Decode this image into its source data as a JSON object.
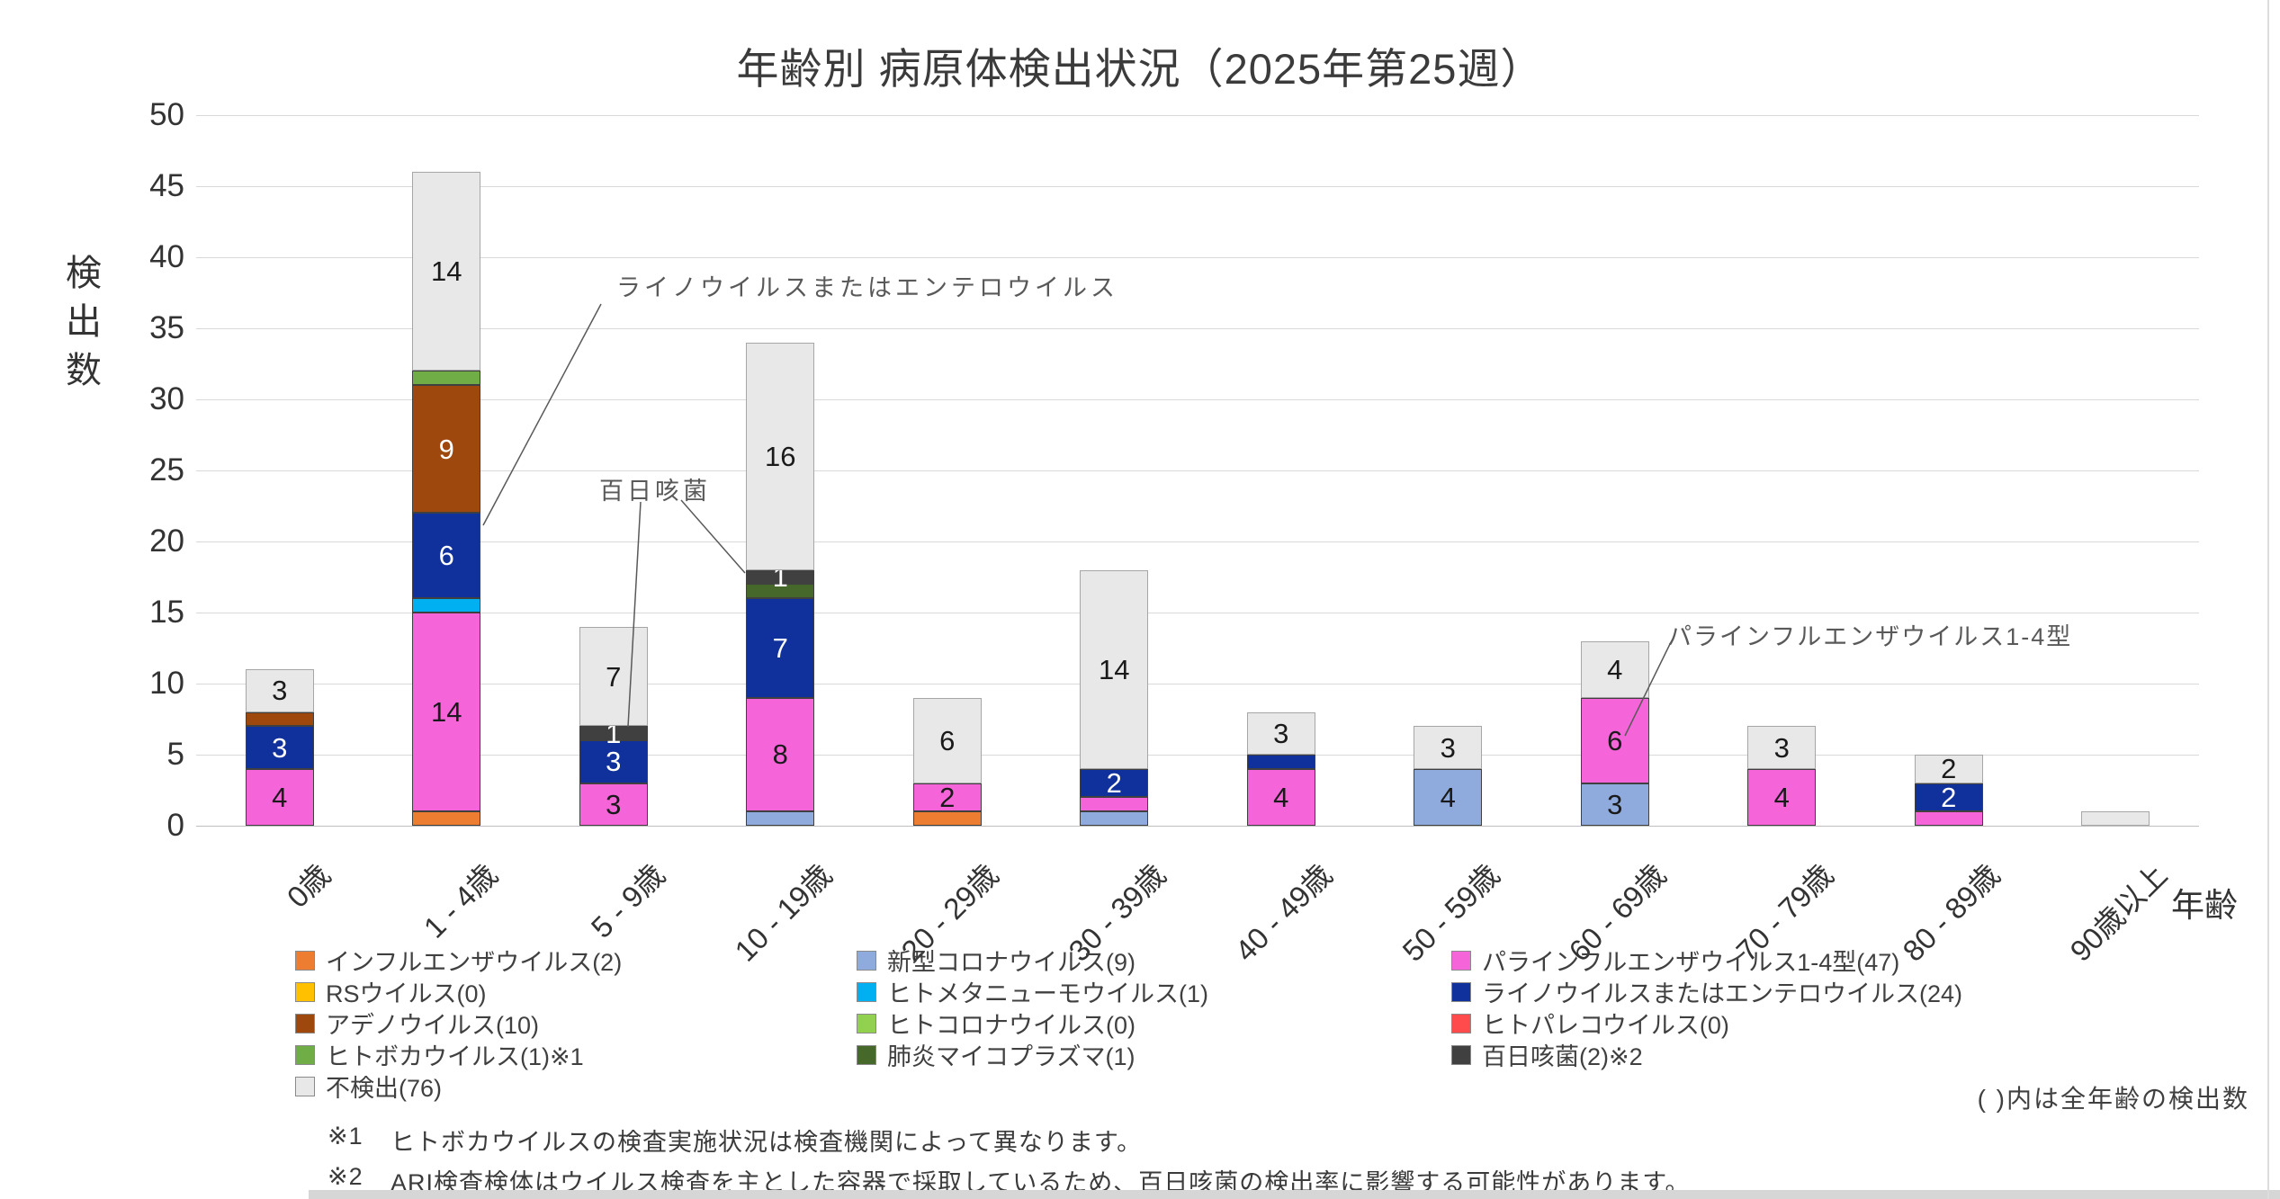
{
  "title": "年齢別 病原体検出状況（2025年第25週）",
  "y_axis": {
    "title": "検出数",
    "ticks": [
      0,
      5,
      10,
      15,
      20,
      25,
      30,
      35,
      40,
      45,
      50
    ]
  },
  "x_axis": {
    "title": "年齢"
  },
  "chart_data": {
    "type": "bar",
    "stacked": true,
    "title": "年齢別 病原体検出状況（2025年第25週）",
    "xlabel": "年齢",
    "ylabel": "検出数",
    "ylim": [
      0,
      50
    ],
    "grid": true,
    "legend_position": "bottom",
    "label_min": 2,
    "categories": [
      "0歳",
      "1 - 4歳",
      "5 - 9歳",
      "10 - 19歳",
      "20 - 29歳",
      "30 - 39歳",
      "40 - 49歳",
      "50 - 59歳",
      "60 - 69歳",
      "70 - 79歳",
      "80 - 89歳",
      "90歳以上"
    ],
    "series": [
      {
        "name": "インフルエンザウイルス",
        "legend_label": "インフルエンザウイルス(2)",
        "color": "#ED7D31",
        "label_color": "#1a1a1a",
        "values": [
          0,
          1,
          0,
          0,
          1,
          0,
          0,
          0,
          0,
          0,
          0,
          0
        ]
      },
      {
        "name": "新型コロナウイルス",
        "legend_label": "新型コロナウイルス(9)",
        "color": "#8FAADC",
        "label_color": "#1a1a1a",
        "values": [
          0,
          0,
          0,
          1,
          0,
          1,
          0,
          4,
          3,
          0,
          0,
          0
        ]
      },
      {
        "name": "パラインフルエンザウイルス1-4型",
        "legend_label": "パラインフルエンザウイルス1-4型(47)",
        "color": "#F564D9",
        "label_color": "#1a1a1a",
        "values": [
          4,
          14,
          3,
          8,
          2,
          1,
          4,
          0,
          6,
          4,
          1,
          0
        ]
      },
      {
        "name": "RSウイルス",
        "legend_label": "RSウイルス(0)",
        "color": "#FFC000",
        "label_color": "#1a1a1a",
        "values": [
          0,
          0,
          0,
          0,
          0,
          0,
          0,
          0,
          0,
          0,
          0,
          0
        ]
      },
      {
        "name": "ヒトメタニューモウイルス",
        "legend_label": "ヒトメタニューモウイルス(1)",
        "color": "#00B0F0",
        "label_color": "#1a1a1a",
        "values": [
          0,
          1,
          0,
          0,
          0,
          0,
          0,
          0,
          0,
          0,
          0,
          0
        ]
      },
      {
        "name": "ライノウイルスまたはエンテロウイルス",
        "legend_label": "ライノウイルスまたはエンテロウイルス(24)",
        "color": "#10309C",
        "label_color": "#ffffff",
        "values": [
          3,
          6,
          3,
          7,
          0,
          2,
          1,
          0,
          0,
          0,
          2,
          0
        ]
      },
      {
        "name": "アデノウイルス",
        "legend_label": "アデノウイルス(10)",
        "color": "#9E480E",
        "label_color": "#ffffff",
        "values": [
          1,
          9,
          0,
          0,
          0,
          0,
          0,
          0,
          0,
          0,
          0,
          0
        ]
      },
      {
        "name": "ヒトコロナウイルス",
        "legend_label": "ヒトコロナウイルス(0)",
        "color": "#92D050",
        "label_color": "#1a1a1a",
        "values": [
          0,
          0,
          0,
          0,
          0,
          0,
          0,
          0,
          0,
          0,
          0,
          0
        ]
      },
      {
        "name": "ヒトパレコウイルス",
        "legend_label": "ヒトパレコウイルス(0)",
        "color": "#FF4B4B",
        "label_color": "#1a1a1a",
        "values": [
          0,
          0,
          0,
          0,
          0,
          0,
          0,
          0,
          0,
          0,
          0,
          0
        ]
      },
      {
        "name": "ヒトボカウイルス",
        "legend_label": "ヒトボカウイルス(1)※1",
        "color": "#70AD47",
        "label_color": "#1a1a1a",
        "values": [
          0,
          1,
          0,
          0,
          0,
          0,
          0,
          0,
          0,
          0,
          0,
          0
        ]
      },
      {
        "name": "肺炎マイコプラズマ",
        "legend_label": "肺炎マイコプラズマ(1)",
        "color": "#46682A",
        "label_color": "#ffffff",
        "values": [
          0,
          0,
          0,
          1,
          0,
          0,
          0,
          0,
          0,
          0,
          0,
          0
        ]
      },
      {
        "name": "百日咳菌",
        "legend_label": "百日咳菌(2)※2",
        "color": "#404040",
        "label_color": "#ffffff",
        "always_label": true,
        "values": [
          0,
          0,
          1,
          1,
          0,
          0,
          0,
          0,
          0,
          0,
          0,
          0
        ]
      },
      {
        "name": "不検出",
        "legend_label": "不検出(76)",
        "color": "#E8E8E8",
        "border": "#a6a6a6",
        "label_color": "#1a1a1a",
        "values": [
          3,
          14,
          7,
          16,
          6,
          14,
          3,
          3,
          4,
          3,
          2,
          1
        ]
      }
    ]
  },
  "annotations": [
    {
      "text": "ライノウイルスまたはエンテロウイルス"
    },
    {
      "text": "百日咳菌"
    },
    {
      "text": "パラインフルエンザウイルス1-4型"
    }
  ],
  "legend": {
    "columns": [
      [
        0,
        3,
        6,
        9,
        12
      ],
      [
        1,
        4,
        7,
        10
      ],
      [
        2,
        5,
        8,
        11
      ]
    ]
  },
  "paren_note": "( )内は全年齢の検出数",
  "footnotes": [
    {
      "marker": "※1",
      "text": "ヒトボカウイルスの検査実施状況は検査機関によって異なります。"
    },
    {
      "marker": "※2",
      "text": "ARI検査検体はウイルス検査を主とした容器で採取しているため、百日咳菌の検出率に影響する可能性があります。"
    }
  ]
}
